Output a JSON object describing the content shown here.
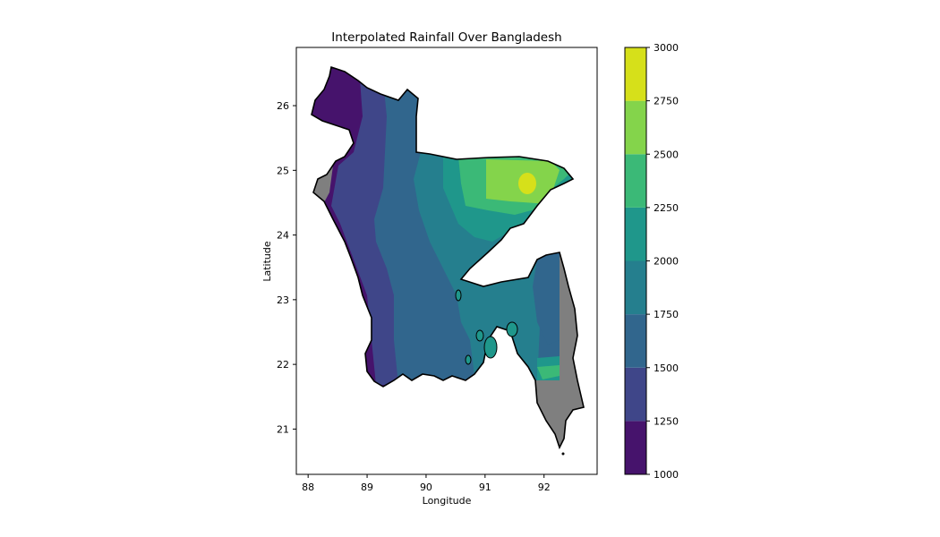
{
  "figure": {
    "title": "Interpolated Rainfall Over Bangladesh",
    "xlabel": "Longitude",
    "ylabel": "Latitude"
  },
  "chart_data": {
    "type": "heatmap",
    "title": "Interpolated Rainfall Over Bangladesh",
    "xlabel": "Longitude",
    "ylabel": "Latitude",
    "xlim": [
      87.8,
      92.9
    ],
    "ylim": [
      20.3,
      26.9
    ],
    "x_ticks": [
      88,
      89,
      90,
      91,
      92
    ],
    "y_ticks": [
      21,
      22,
      23,
      24,
      25,
      26
    ],
    "colorbar": {
      "levels": [
        1000,
        1250,
        1500,
        1750,
        2000,
        2250,
        2500,
        2750,
        3000
      ],
      "colors": [
        "#46136c",
        "#3f4689",
        "#31668d",
        "#257f8e",
        "#1f978b",
        "#3bb977",
        "#84d44b",
        "#d6e01a"
      ]
    },
    "region_outline_color": "#000000",
    "outside_mask_color": "#7f7f7f"
  }
}
